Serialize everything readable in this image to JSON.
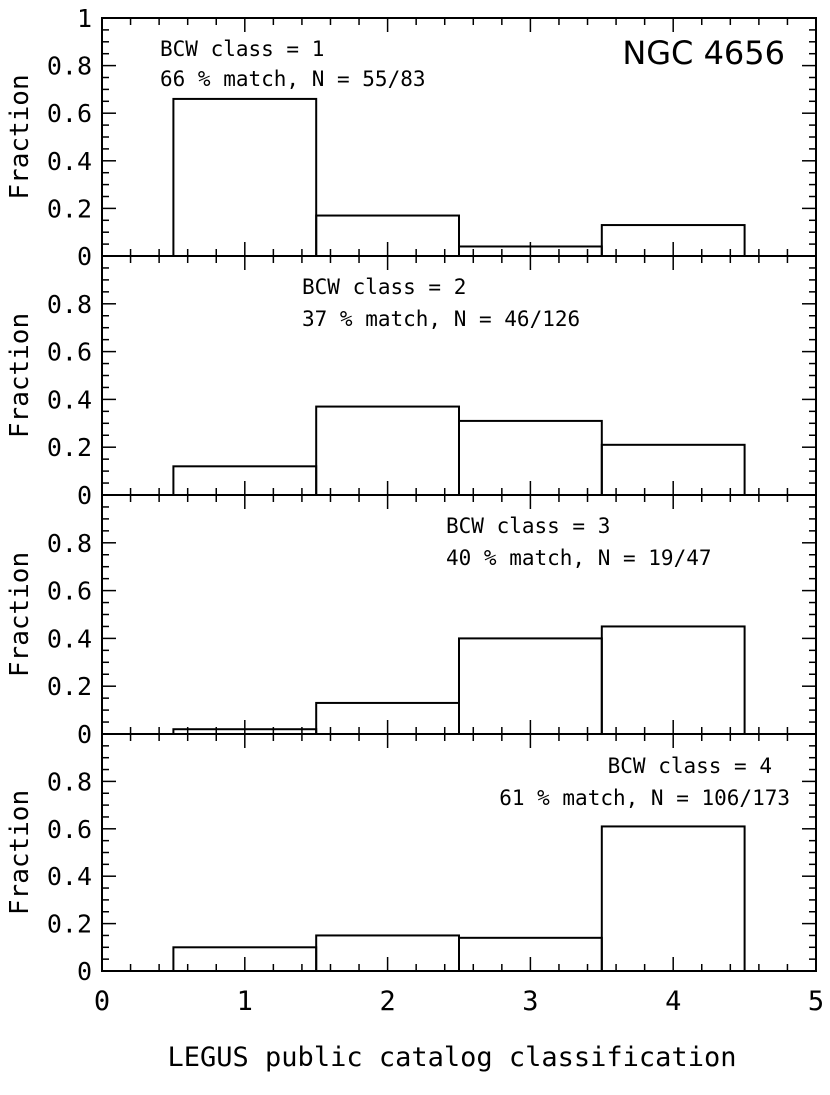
{
  "chart_data": {
    "type": "bar",
    "figure_title": "NGC 4656",
    "xlabel": "LEGUS public catalog classification",
    "ylabel": "Fraction",
    "xlim": [
      0,
      5
    ],
    "ylim": [
      0,
      1
    ],
    "x_ticks": [
      "0",
      "1",
      "2",
      "3",
      "4",
      "5"
    ],
    "y_ticks": [
      "0",
      "0.2",
      "0.4",
      "0.6",
      "0.8",
      "1"
    ],
    "bin_edges": [
      0.5,
      1.5,
      2.5,
      3.5,
      4.5
    ],
    "panels": [
      {
        "line1": "BCW class = 1",
        "line2": "66 % match, N = 55/83",
        "values": [
          0.66,
          0.17,
          0.04,
          0.13
        ]
      },
      {
        "line1": "BCW class = 2",
        "line2": "37 % match, N = 46/126",
        "values": [
          0.12,
          0.37,
          0.31,
          0.21
        ]
      },
      {
        "line1": "BCW class = 3",
        "line2": "40 % match, N = 19/47",
        "values": [
          0.02,
          0.13,
          0.4,
          0.45
        ]
      },
      {
        "line1": "BCW class = 4",
        "line2": "61 % match, N = 106/173",
        "values": [
          0.1,
          0.15,
          0.14,
          0.61
        ]
      }
    ]
  }
}
